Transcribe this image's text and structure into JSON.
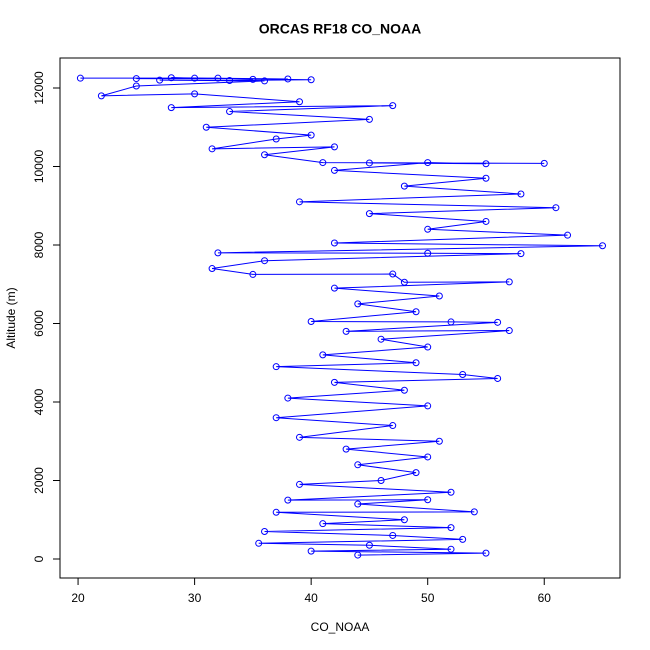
{
  "chart_data": {
    "type": "line",
    "title": "ORCAS RF18 CO_NOAA",
    "x_label": "CO_NOAA",
    "y_label": "Altitude (m)",
    "x": [
      20.2,
      32,
      25,
      38,
      28,
      35,
      30,
      40,
      33,
      27,
      36,
      25,
      22,
      30,
      39,
      28,
      47,
      33,
      45,
      31,
      40,
      37,
      31.5,
      42,
      36,
      41,
      60,
      45,
      55,
      50,
      42,
      55,
      48,
      58,
      39,
      61,
      45,
      55,
      50,
      62,
      42,
      65,
      32,
      50,
      58,
      36,
      31.5,
      35,
      47,
      48,
      57,
      42,
      51,
      44,
      49,
      40,
      52,
      56,
      43,
      57,
      46,
      50,
      41,
      49,
      37,
      53,
      56,
      42,
      48,
      38,
      50,
      37,
      47,
      39,
      51,
      43,
      50,
      44,
      49,
      46,
      39,
      52,
      38,
      50,
      44,
      54,
      37,
      48,
      41,
      52,
      36,
      47,
      53,
      35.5,
      45,
      52,
      40,
      55,
      44
    ],
    "series": [
      {
        "color": "#0000ff",
        "values": [
          12250,
          12250,
          12240,
          12230,
          12260,
          12220,
          12250,
          12210,
          12190,
          12200,
          12180,
          12050,
          11800,
          11850,
          11650,
          11500,
          11550,
          11400,
          11200,
          11000,
          10800,
          10700,
          10450,
          10500,
          10300,
          10100,
          10080,
          10090,
          10070,
          10100,
          9900,
          9700,
          9500,
          9300,
          9100,
          8950,
          8800,
          8600,
          8400,
          8250,
          8050,
          7980,
          7800,
          7790,
          7780,
          7600,
          7400,
          7250,
          7260,
          7050,
          7060,
          6900,
          6700,
          6500,
          6300,
          6050,
          6040,
          6030,
          5800,
          5820,
          5600,
          5400,
          5200,
          5000,
          4900,
          4700,
          4600,
          4500,
          4300,
          4100,
          3900,
          3600,
          3400,
          3100,
          3000,
          2800,
          2600,
          2400,
          2200,
          2000,
          1900,
          1700,
          1500,
          1510,
          1400,
          1200,
          1190,
          1000,
          900,
          800,
          700,
          600,
          500,
          400,
          350,
          250,
          200,
          150,
          100
        ]
      }
    ],
    "xlim": [
      18.45,
      66.5
    ],
    "ylim": [
      -484,
      12764
    ],
    "xticks": [
      20,
      30,
      40,
      50,
      60
    ],
    "yticks": [
      0,
      2000,
      4000,
      6000,
      8000,
      10000,
      12000
    ]
  }
}
